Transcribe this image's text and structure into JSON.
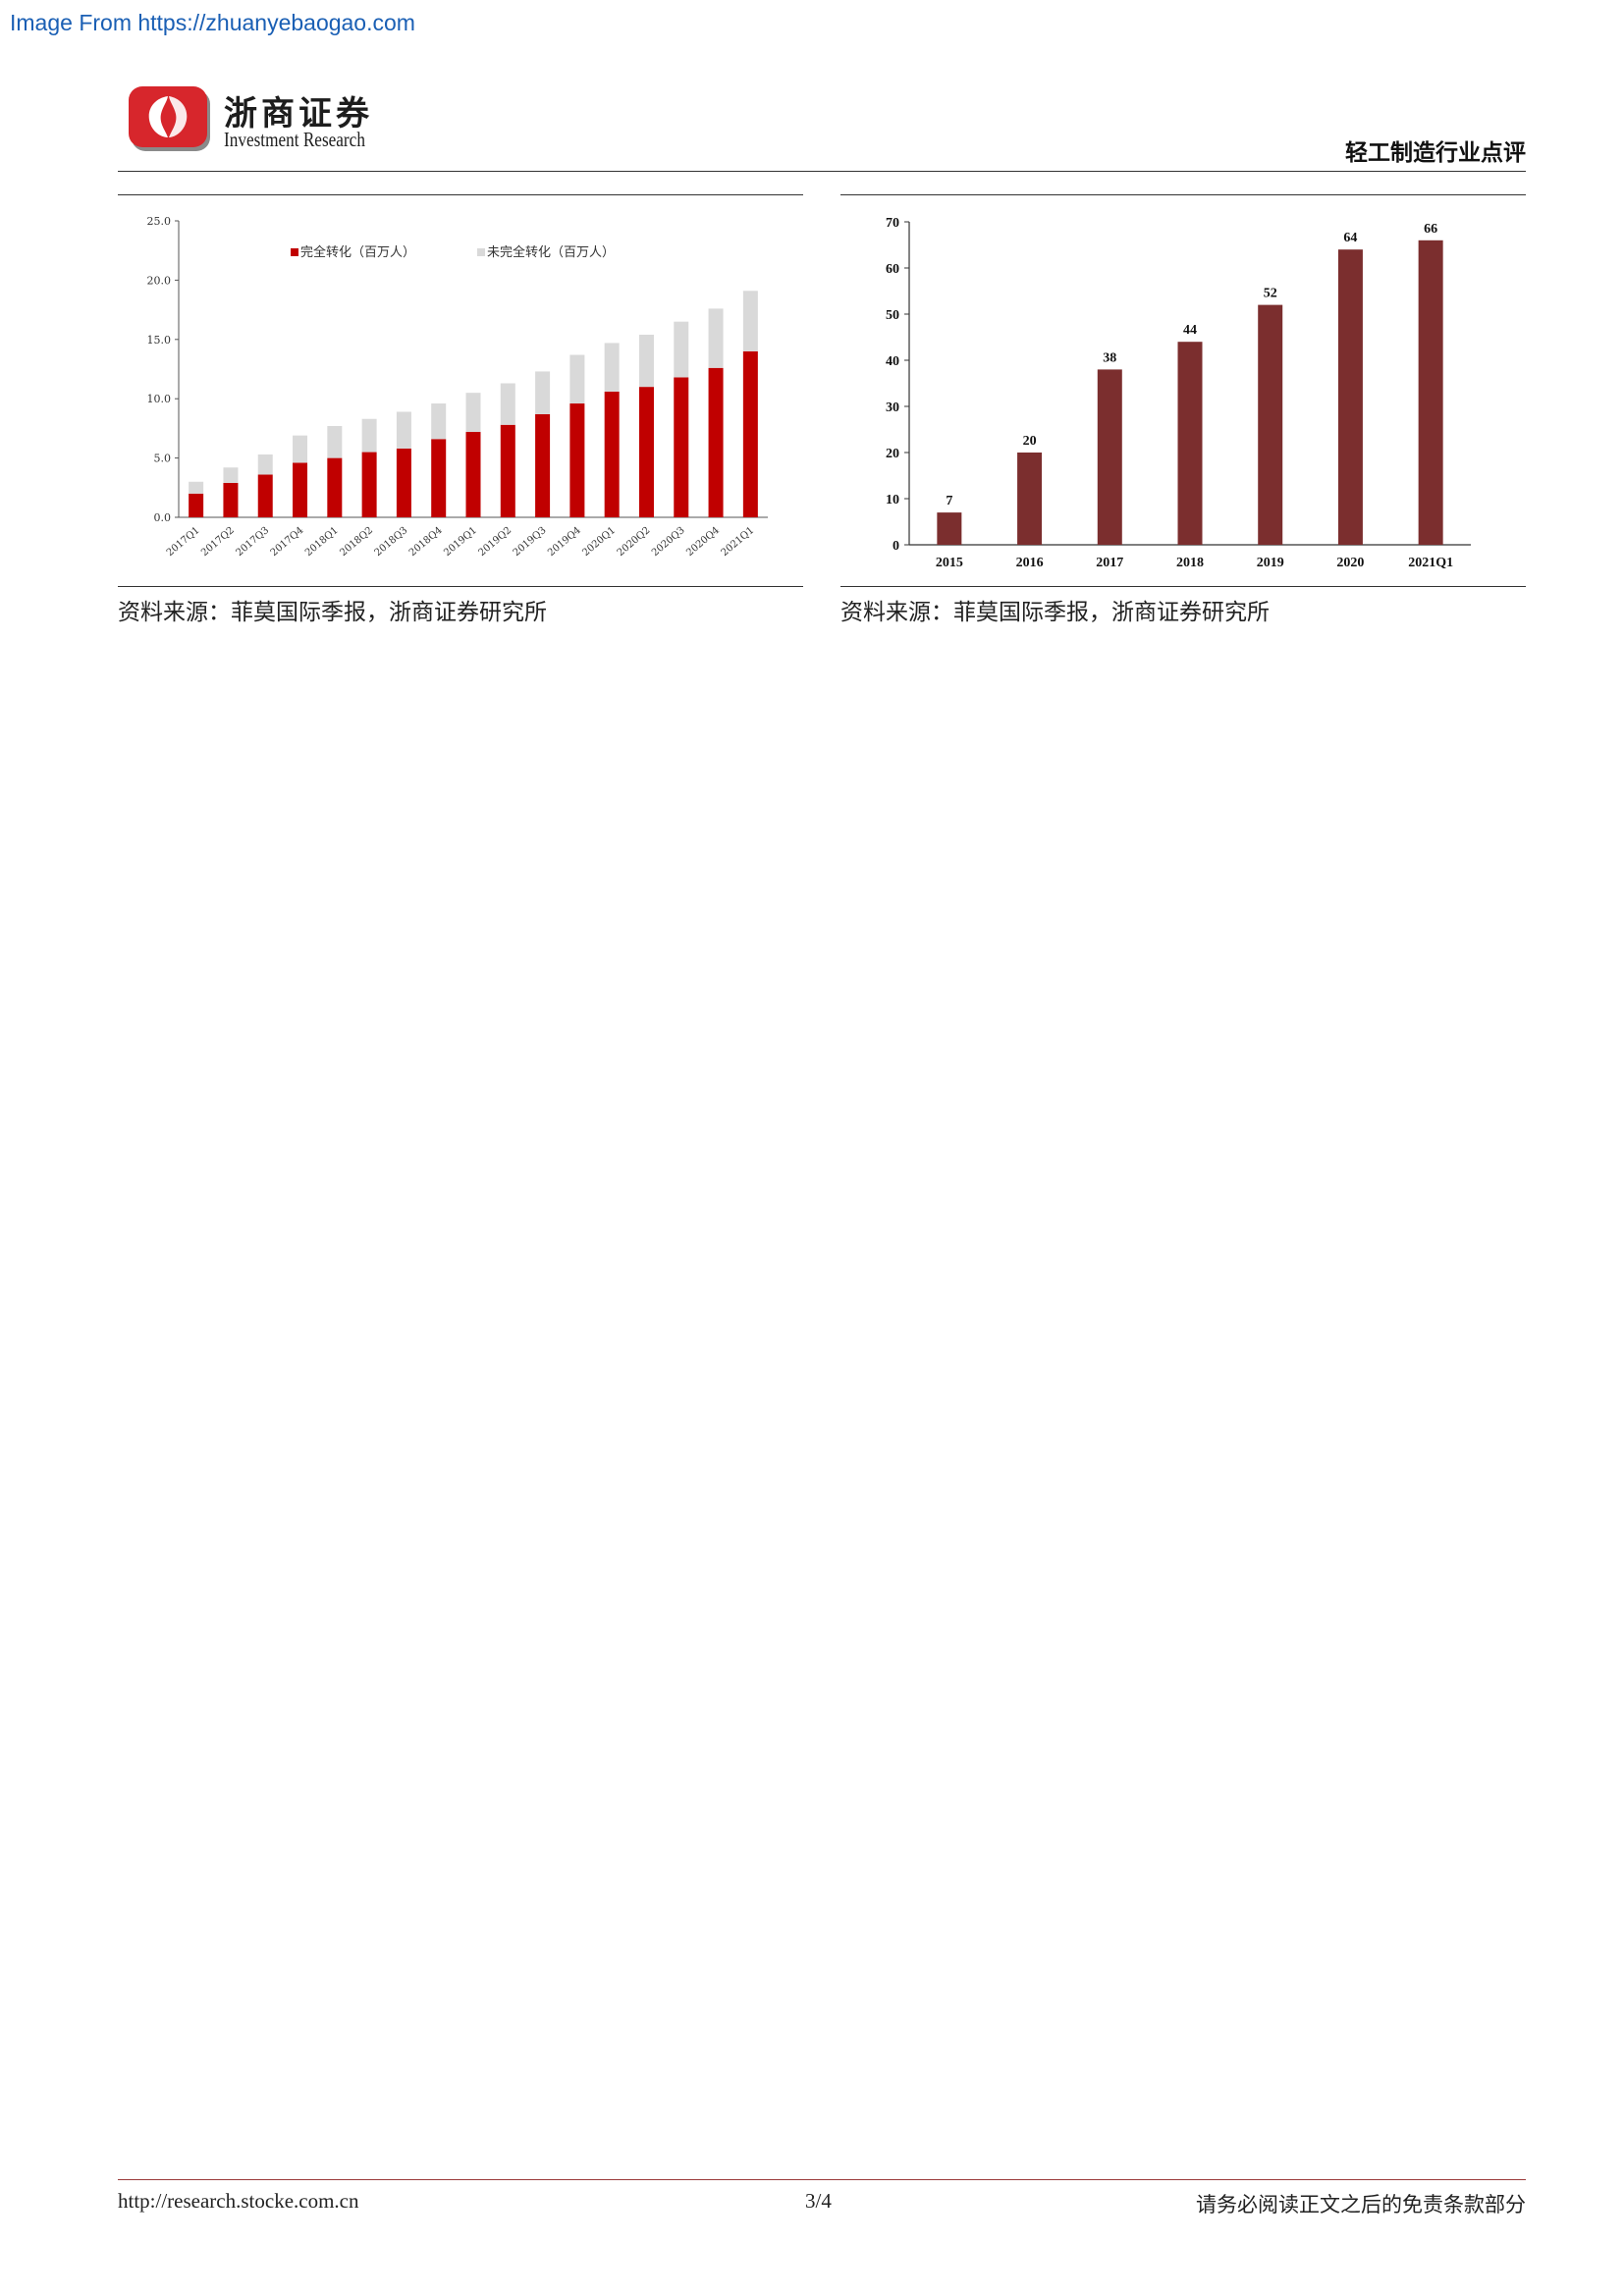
{
  "watermark": "Image From https://zhuanyebaogao.com",
  "logo": {
    "cn": "浙商证券",
    "en": "Investment Research"
  },
  "header": {
    "title": "轻工制造行业点评"
  },
  "chart_data": [
    {
      "type": "bar",
      "stacked": true,
      "categories": [
        "2017Q1",
        "2017Q2",
        "2017Q3",
        "2017Q4",
        "2018Q1",
        "2018Q2",
        "2018Q3",
        "2018Q4",
        "2019Q1",
        "2019Q2",
        "2019Q3",
        "2019Q4",
        "2020Q1",
        "2020Q2",
        "2020Q3",
        "2020Q4",
        "2021Q1"
      ],
      "series": [
        {
          "name": "完全转化（百万人）",
          "color": "#c00000",
          "values": [
            2.0,
            2.9,
            3.6,
            4.6,
            5.0,
            5.5,
            5.8,
            6.6,
            7.2,
            7.8,
            8.7,
            9.6,
            10.6,
            11.0,
            11.8,
            12.6,
            14.0
          ]
        },
        {
          "name": "未完全转化（百万人）",
          "color": "#d9d9d9",
          "values": [
            1.0,
            1.3,
            1.7,
            2.3,
            2.7,
            2.8,
            3.1,
            3.0,
            3.3,
            3.5,
            3.6,
            4.1,
            4.1,
            4.4,
            4.7,
            5.0,
            5.1
          ]
        }
      ],
      "ylim": [
        0,
        25
      ],
      "yticks": [
        "0.0",
        "5.0",
        "10.0",
        "15.0",
        "20.0",
        "25.0"
      ],
      "legend": "top",
      "grid": false
    },
    {
      "type": "bar",
      "categories": [
        "2015",
        "2016",
        "2017",
        "2018",
        "2019",
        "2020",
        "2021Q1"
      ],
      "values": [
        7,
        20,
        38,
        44,
        52,
        64,
        66
      ],
      "labels": [
        "7",
        "20",
        "38",
        "44",
        "52",
        "64",
        "66"
      ],
      "color": "#7b2e2e",
      "ylim": [
        0,
        70
      ],
      "yticks": [
        "0",
        "10",
        "20",
        "30",
        "40",
        "50",
        "60",
        "70"
      ],
      "grid": false
    }
  ],
  "sources": {
    "left": "资料来源：菲莫国际季报，浙商证券研究所",
    "right": "资料来源：菲莫国际季报，浙商证券研究所"
  },
  "footer": {
    "url": "http://research.stocke.com.cn",
    "page": "3/4",
    "disclaimer": "请务必阅读正文之后的免责条款部分"
  }
}
